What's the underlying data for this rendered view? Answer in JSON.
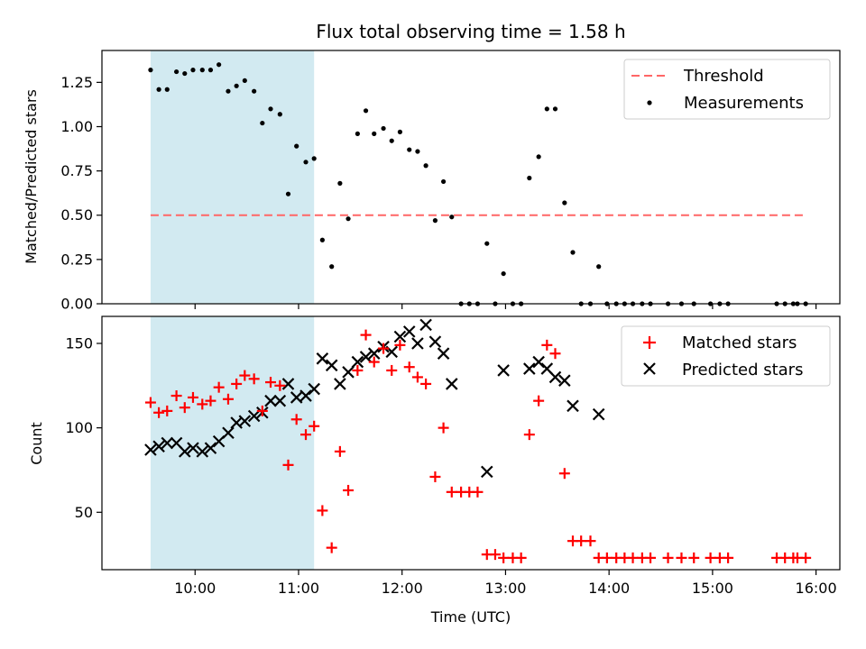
{
  "chart_data": [
    {
      "type": "scatter",
      "title": "Flux total observing time = 1.58 h",
      "xlabel": "",
      "ylabel": "Matched/Predicted stars",
      "x_unit": "hours UTC",
      "xlim": [
        9.1,
        16.23
      ],
      "ylim": [
        0.0,
        1.43
      ],
      "yticks": [
        0.0,
        0.25,
        0.5,
        0.75,
        1.0,
        1.25
      ],
      "ytick_labels": [
        "0.00",
        "0.25",
        "0.50",
        "0.75",
        "1.00",
        "1.25"
      ],
      "xticks": [
        10,
        11,
        12,
        13,
        14,
        15,
        16
      ],
      "xtick_labels": [],
      "highlight_span": [
        9.57,
        11.15
      ],
      "highlight_color": "#add8e6",
      "threshold": {
        "name": "Threshold",
        "y": 0.5,
        "x_range": [
          9.57,
          15.9
        ],
        "color": "#ff6666"
      },
      "legend": [
        "Threshold",
        "Measurements"
      ],
      "legend_position": "top-right",
      "series": [
        {
          "name": "Measurements",
          "color": "#000000",
          "x": [
            9.57,
            9.65,
            9.73,
            9.82,
            9.9,
            9.98,
            10.07,
            10.15,
            10.23,
            10.32,
            10.4,
            10.48,
            10.57,
            10.65,
            10.73,
            10.82,
            10.9,
            10.98,
            11.07,
            11.15,
            11.23,
            11.32,
            11.4,
            11.48,
            11.57,
            11.65,
            11.73,
            11.82,
            11.9,
            11.98,
            12.07,
            12.15,
            12.23,
            12.32,
            12.4,
            12.48,
            12.57,
            12.65,
            12.73,
            12.82,
            12.9,
            12.98,
            13.07,
            13.15,
            13.23,
            13.32,
            13.4,
            13.48,
            13.57,
            13.65,
            13.73,
            13.82,
            13.9,
            13.98,
            14.07,
            14.15,
            14.23,
            14.32,
            14.4,
            14.57,
            14.7,
            14.82,
            14.98,
            15.07,
            15.15,
            15.62,
            15.7,
            15.78,
            15.82,
            15.9
          ],
          "y": [
            1.32,
            1.21,
            1.21,
            1.31,
            1.3,
            1.32,
            1.32,
            1.32,
            1.35,
            1.2,
            1.23,
            1.26,
            1.2,
            1.02,
            1.1,
            1.07,
            0.62,
            0.89,
            0.8,
            0.82,
            0.36,
            0.21,
            0.68,
            0.48,
            0.96,
            1.09,
            0.96,
            0.99,
            0.92,
            0.97,
            0.87,
            0.86,
            0.78,
            0.47,
            0.69,
            0.49,
            0.0,
            0.0,
            0.0,
            0.34,
            0.0,
            0.17,
            0.0,
            0.0,
            0.71,
            0.83,
            1.1,
            1.1,
            0.57,
            0.29,
            0.0,
            0.0,
            0.21,
            0.0,
            0.0,
            0.0,
            0.0,
            0.0,
            0.0,
            0.0,
            0.0,
            0.0,
            0.0,
            0.0,
            0.0,
            0.0,
            0.0,
            0.0,
            0.0,
            0.0
          ]
        }
      ]
    },
    {
      "type": "scatter",
      "title": "",
      "xlabel": "Time (UTC)",
      "ylabel": "Count",
      "x_unit": "hours UTC",
      "xlim": [
        9.1,
        16.23
      ],
      "ylim": [
        16,
        166
      ],
      "yticks": [
        50,
        100,
        150
      ],
      "ytick_labels": [
        "50",
        "100",
        "150"
      ],
      "xticks": [
        10,
        11,
        12,
        13,
        14,
        15,
        16
      ],
      "xtick_labels": [
        "10:00",
        "11:00",
        "12:00",
        "13:00",
        "14:00",
        "15:00",
        "16:00"
      ],
      "highlight_span": [
        9.57,
        11.15
      ],
      "highlight_color": "#add8e6",
      "legend": [
        "Matched stars",
        "Predicted stars"
      ],
      "legend_position": "top-right",
      "series": [
        {
          "name": "Matched stars",
          "marker": "plus",
          "color": "#ff0000",
          "x": [
            9.57,
            9.65,
            9.73,
            9.82,
            9.9,
            9.98,
            10.07,
            10.15,
            10.23,
            10.32,
            10.4,
            10.48,
            10.57,
            10.65,
            10.73,
            10.82,
            10.9,
            10.98,
            11.07,
            11.15,
            11.23,
            11.32,
            11.4,
            11.48,
            11.57,
            11.65,
            11.73,
            11.82,
            11.9,
            11.98,
            12.07,
            12.15,
            12.23,
            12.32,
            12.4,
            12.48,
            12.57,
            12.65,
            12.73,
            12.82,
            12.9,
            12.98,
            13.07,
            13.15,
            13.23,
            13.32,
            13.4,
            13.48,
            13.57,
            13.65,
            13.73,
            13.82,
            13.9,
            13.98,
            14.07,
            14.15,
            14.23,
            14.32,
            14.4,
            14.57,
            14.7,
            14.82,
            14.98,
            15.07,
            15.15,
            15.62,
            15.7,
            15.78,
            15.82,
            15.9
          ],
          "y": [
            115,
            109,
            110,
            119,
            112,
            118,
            114,
            116,
            124,
            117,
            126,
            131,
            129,
            110,
            127,
            125,
            78,
            105,
            96,
            101,
            51,
            29,
            86,
            63,
            134,
            155,
            139,
            147,
            134,
            149,
            136,
            130,
            126,
            71,
            100,
            62,
            62,
            62,
            62,
            25,
            25,
            23,
            23,
            23,
            96,
            116,
            149,
            144,
            73,
            33,
            33,
            33,
            23,
            23,
            23,
            23,
            23,
            23,
            23,
            23,
            23,
            23,
            23,
            23,
            23,
            23,
            23,
            23,
            23,
            23
          ]
        },
        {
          "name": "Predicted stars",
          "marker": "x",
          "color": "#000000",
          "x": [
            9.57,
            9.65,
            9.73,
            9.82,
            9.9,
            9.98,
            10.07,
            10.15,
            10.23,
            10.32,
            10.4,
            10.48,
            10.57,
            10.65,
            10.73,
            10.82,
            10.9,
            10.98,
            11.07,
            11.15,
            11.23,
            11.32,
            11.4,
            11.48,
            11.57,
            11.65,
            11.73,
            11.82,
            11.9,
            11.98,
            12.07,
            12.15,
            12.23,
            12.32,
            12.4,
            12.48,
            12.82,
            12.98,
            13.23,
            13.32,
            13.4,
            13.48,
            13.57,
            13.65,
            13.9
          ],
          "y": [
            87,
            89,
            91,
            91,
            86,
            88,
            86,
            88,
            92,
            97,
            103,
            104,
            107,
            109,
            116,
            116,
            126,
            118,
            119,
            123,
            141,
            137,
            126,
            133,
            139,
            142,
            144,
            148,
            145,
            154,
            157,
            150,
            161,
            151,
            144,
            126,
            74,
            134,
            135,
            139,
            135,
            130,
            128,
            113,
            108
          ]
        }
      ]
    }
  ]
}
